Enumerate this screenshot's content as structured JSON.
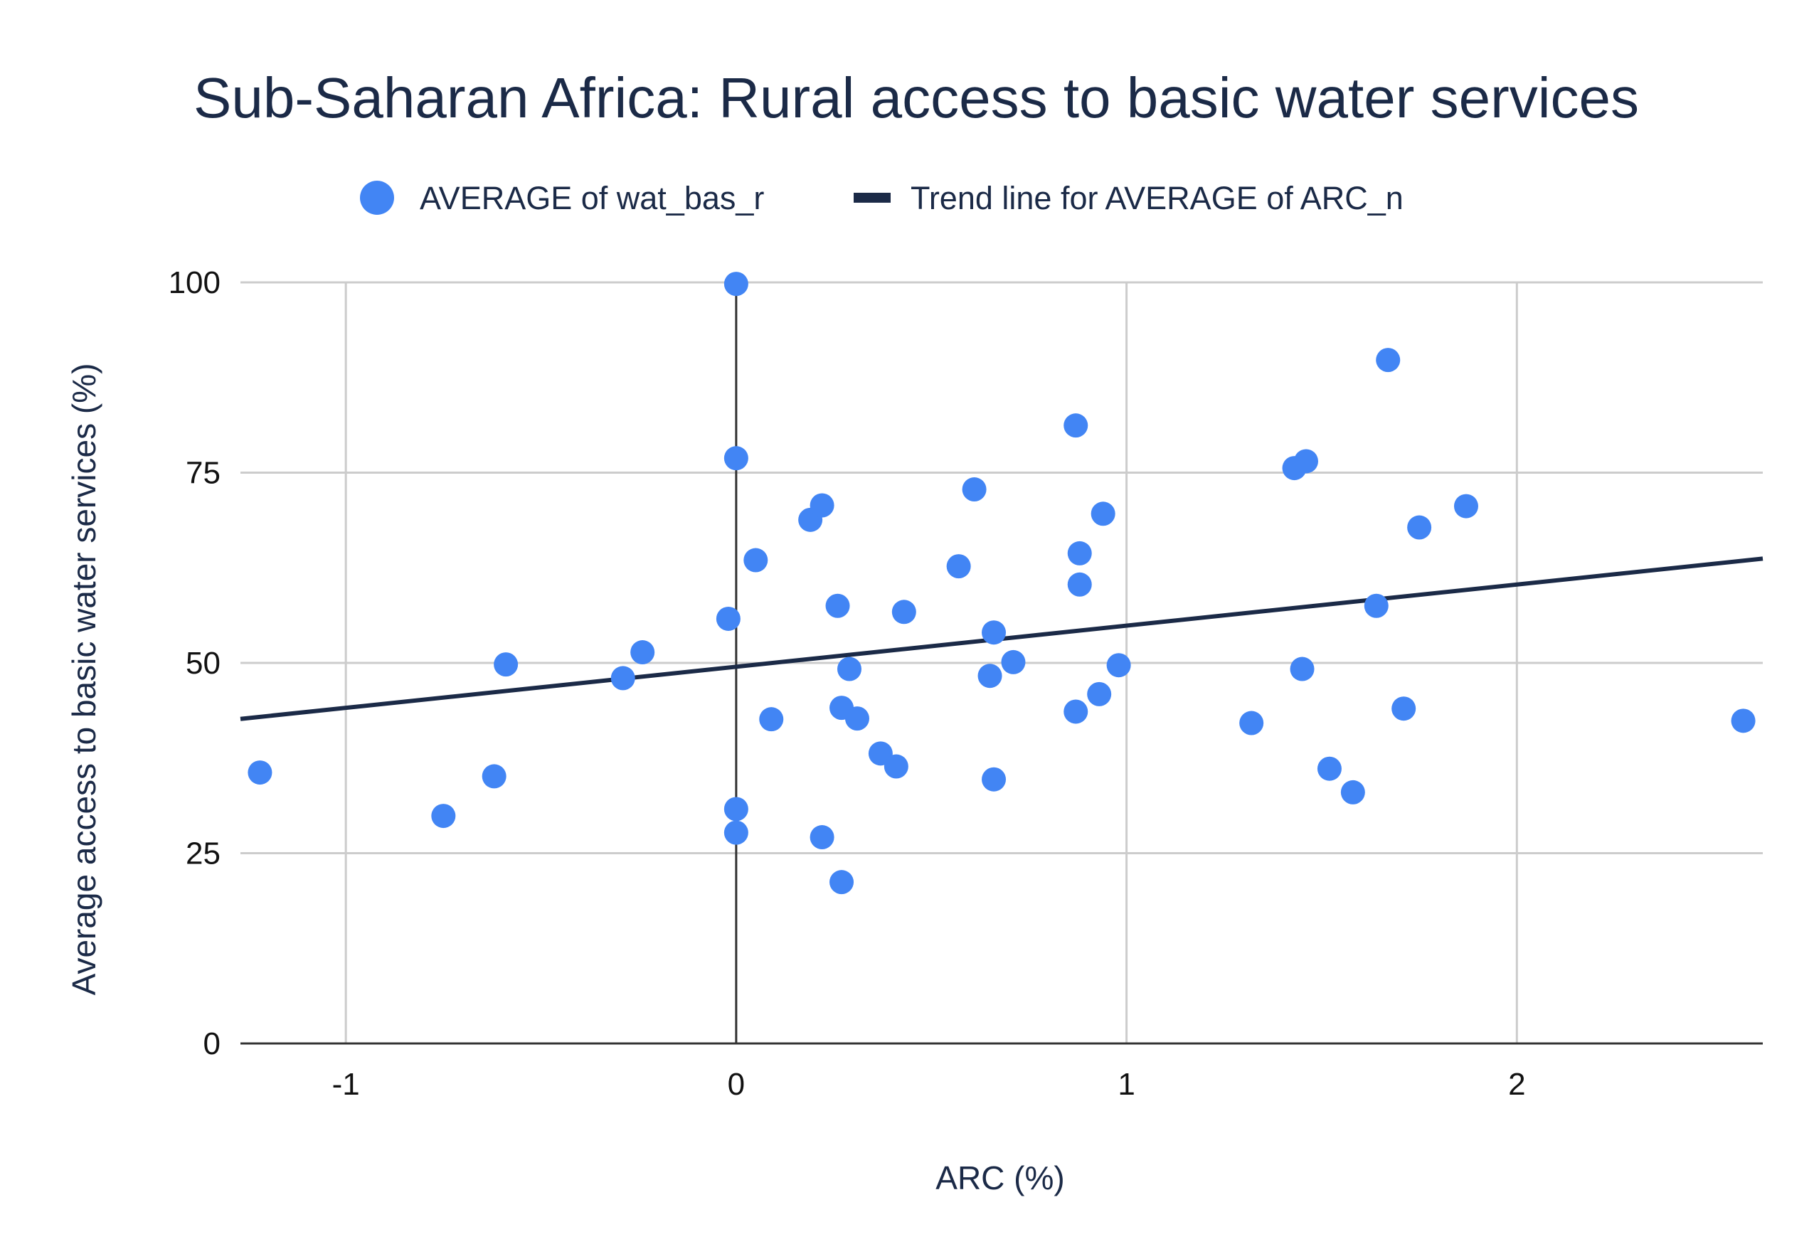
{
  "chart_data": {
    "type": "scatter",
    "title": "Sub-Saharan Africa: Rural access to basic water services",
    "xlabel": "ARC (%)",
    "ylabel": "Average access to basic water services (%)",
    "xlim": [
      -1.27,
      2.63
    ],
    "ylim": [
      0,
      100
    ],
    "x_ticks": [
      "-1",
      "0",
      "1",
      "2"
    ],
    "x_tick_values": [
      -1,
      0,
      1,
      2
    ],
    "y_ticks": [
      "0",
      "25",
      "50",
      "75",
      "100"
    ],
    "y_tick_values": [
      0,
      25,
      50,
      75,
      100
    ],
    "grid": true,
    "legend_position": "top-center",
    "colors": {
      "points": "#4285f4",
      "trend": "#1b2a47",
      "grid": "#cccccc",
      "axis": "#333333"
    },
    "series": [
      {
        "name": "AVERAGE of wat_bas_r",
        "kind": "points",
        "points": [
          [
            -1.22,
            35.6
          ],
          [
            -0.75,
            29.9
          ],
          [
            -0.62,
            35.1
          ],
          [
            -0.59,
            49.8
          ],
          [
            -0.29,
            48.0
          ],
          [
            -0.24,
            51.4
          ],
          [
            -0.02,
            55.8
          ],
          [
            0.0,
            99.8
          ],
          [
            0.0,
            76.9
          ],
          [
            0.0,
            30.8
          ],
          [
            0.0,
            27.7
          ],
          [
            0.05,
            63.5
          ],
          [
            0.09,
            42.6
          ],
          [
            0.19,
            68.8
          ],
          [
            0.22,
            70.7
          ],
          [
            0.22,
            27.1
          ],
          [
            0.26,
            57.5
          ],
          [
            0.27,
            44.1
          ],
          [
            0.27,
            21.2
          ],
          [
            0.29,
            49.2
          ],
          [
            0.31,
            42.7
          ],
          [
            0.37,
            38.1
          ],
          [
            0.41,
            36.4
          ],
          [
            0.43,
            56.7
          ],
          [
            0.57,
            62.7
          ],
          [
            0.61,
            72.8
          ],
          [
            0.65,
            48.3
          ],
          [
            0.66,
            34.7
          ],
          [
            0.66,
            54.0
          ],
          [
            0.71,
            50.1
          ],
          [
            0.87,
            81.2
          ],
          [
            0.87,
            43.6
          ],
          [
            0.88,
            64.4
          ],
          [
            0.88,
            60.3
          ],
          [
            0.93,
            45.9
          ],
          [
            0.94,
            69.6
          ],
          [
            0.98,
            49.7
          ],
          [
            1.32,
            42.1
          ],
          [
            1.43,
            75.6
          ],
          [
            1.46,
            76.5
          ],
          [
            1.45,
            49.2
          ],
          [
            1.52,
            36.1
          ],
          [
            1.58,
            33.0
          ],
          [
            1.64,
            57.5
          ],
          [
            1.67,
            89.8
          ],
          [
            1.71,
            44.0
          ],
          [
            1.75,
            67.8
          ],
          [
            1.87,
            70.6
          ],
          [
            2.58,
            42.4
          ]
        ]
      },
      {
        "name": "Trend line for AVERAGE of ARC_n",
        "kind": "trendline",
        "slope": 5.4,
        "intercept": 49.5
      }
    ]
  }
}
